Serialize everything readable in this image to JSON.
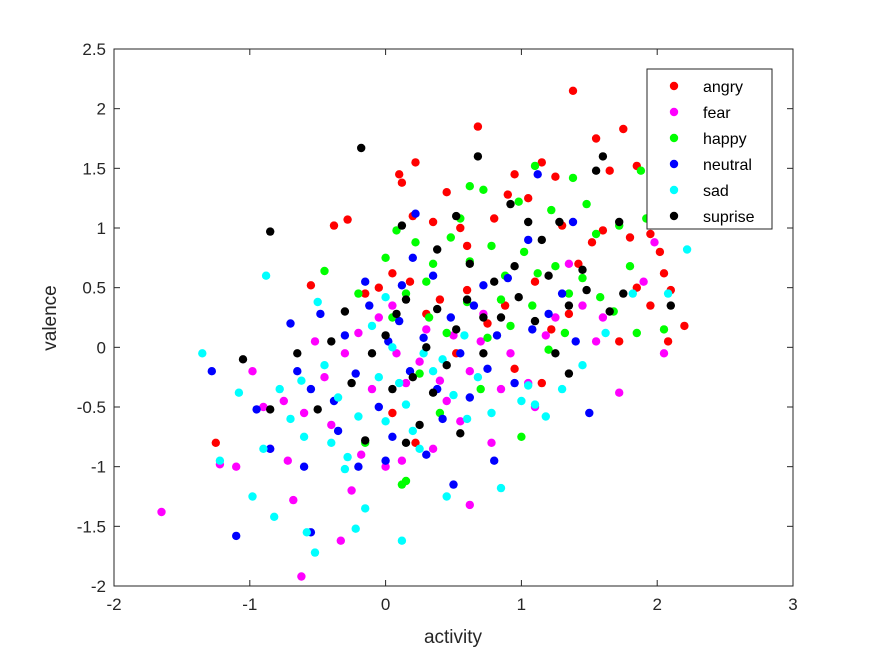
{
  "chart_data": {
    "type": "scatter",
    "title": "",
    "xlabel": "activity",
    "ylabel": "valence",
    "xlim": [
      -2,
      3
    ],
    "ylim": [
      -2,
      2.5
    ],
    "xticks": [
      "-2",
      "-1",
      "0",
      "1",
      "2",
      "3"
    ],
    "yticks": [
      "-2",
      "-1.5",
      "-1",
      "-0.5",
      "0",
      "0.5",
      "1",
      "1.5",
      "2",
      "2.5"
    ],
    "grid": false,
    "legend": "top-right",
    "series": [
      {
        "name": "angry",
        "color": "#ff0000",
        "points": [
          [
            1.38,
            2.15
          ],
          [
            0.68,
            1.85
          ],
          [
            1.75,
            1.83
          ],
          [
            0.22,
            1.55
          ],
          [
            1.15,
            1.55
          ],
          [
            1.55,
            1.75
          ],
          [
            0.1,
            1.45
          ],
          [
            0.95,
            1.45
          ],
          [
            1.25,
            1.43
          ],
          [
            1.65,
            1.48
          ],
          [
            1.85,
            1.52
          ],
          [
            0.12,
            1.38
          ],
          [
            0.45,
            1.3
          ],
          [
            0.9,
            1.28
          ],
          [
            1.05,
            1.25
          ],
          [
            -0.28,
            1.07
          ],
          [
            -0.38,
            1.02
          ],
          [
            0.2,
            1.1
          ],
          [
            0.35,
            1.05
          ],
          [
            0.55,
            1.0
          ],
          [
            0.8,
            1.08
          ],
          [
            1.3,
            1.02
          ],
          [
            1.6,
            0.98
          ],
          [
            1.95,
            0.95
          ],
          [
            -0.05,
            0.5
          ],
          [
            0.05,
            0.62
          ],
          [
            0.18,
            0.55
          ],
          [
            0.4,
            0.4
          ],
          [
            0.6,
            0.48
          ],
          [
            0.88,
            0.35
          ],
          [
            1.1,
            0.55
          ],
          [
            1.42,
            0.7
          ],
          [
            1.52,
            0.88
          ],
          [
            2.02,
            0.8
          ],
          [
            2.05,
            0.62
          ],
          [
            2.1,
            0.48
          ],
          [
            1.85,
            0.5
          ],
          [
            1.95,
            0.35
          ],
          [
            2.2,
            0.18
          ],
          [
            2.08,
            0.05
          ],
          [
            1.72,
            0.05
          ],
          [
            1.22,
            0.15
          ],
          [
            0.75,
            0.2
          ],
          [
            0.3,
            0.28
          ],
          [
            -0.55,
            0.52
          ],
          [
            -0.15,
            0.45
          ],
          [
            0.95,
            -0.18
          ],
          [
            1.15,
            -0.3
          ],
          [
            0.52,
            -0.05
          ],
          [
            -1.25,
            -0.8
          ],
          [
            0.05,
            -0.55
          ],
          [
            0.22,
            -0.8
          ],
          [
            1.35,
            0.28
          ],
          [
            0.6,
            0.85
          ],
          [
            1.8,
            0.92
          ]
        ]
      },
      {
        "name": "fear",
        "color": "#ff00ff",
        "points": [
          [
            -1.65,
            -1.38
          ],
          [
            -0.62,
            -1.92
          ],
          [
            -0.33,
            -1.62
          ],
          [
            -1.22,
            -0.98
          ],
          [
            -1.1,
            -1.0
          ],
          [
            -0.85,
            -0.85
          ],
          [
            -0.68,
            -1.28
          ],
          [
            -0.98,
            -0.2
          ],
          [
            -0.75,
            -0.45
          ],
          [
            -0.6,
            -0.55
          ],
          [
            -0.45,
            -0.25
          ],
          [
            -0.3,
            -0.05
          ],
          [
            -0.2,
            0.12
          ],
          [
            -0.05,
            0.25
          ],
          [
            0.08,
            -0.05
          ],
          [
            0.15,
            -0.3
          ],
          [
            0.25,
            -0.12
          ],
          [
            0.3,
            0.15
          ],
          [
            0.45,
            -0.45
          ],
          [
            0.55,
            -0.62
          ],
          [
            0.62,
            -0.2
          ],
          [
            0.7,
            0.05
          ],
          [
            0.78,
            -0.8
          ],
          [
            0.85,
            -0.35
          ],
          [
            0.92,
            -0.05
          ],
          [
            1.05,
            -0.3
          ],
          [
            1.18,
            0.1
          ],
          [
            1.25,
            0.25
          ],
          [
            1.45,
            0.35
          ],
          [
            1.55,
            0.05
          ],
          [
            1.72,
            -0.38
          ],
          [
            1.9,
            0.55
          ],
          [
            1.98,
            0.88
          ],
          [
            2.05,
            -0.05
          ],
          [
            -0.52,
            0.05
          ],
          [
            -0.4,
            -0.65
          ],
          [
            -0.18,
            -0.9
          ],
          [
            0.12,
            -0.95
          ],
          [
            0.35,
            -0.85
          ],
          [
            0.62,
            -1.32
          ],
          [
            0.05,
            0.35
          ],
          [
            -0.1,
            -0.35
          ],
          [
            0.5,
            0.1
          ],
          [
            1.1,
            -0.5
          ],
          [
            0.0,
            -1.0
          ],
          [
            -0.25,
            -1.2
          ],
          [
            -0.72,
            -0.95
          ],
          [
            -0.9,
            -0.5
          ],
          [
            0.4,
            -0.28
          ],
          [
            0.72,
            0.28
          ],
          [
            1.35,
            0.7
          ],
          [
            1.6,
            0.25
          ]
        ]
      },
      {
        "name": "happy",
        "color": "#00ff00",
        "points": [
          [
            1.1,
            1.52
          ],
          [
            1.38,
            1.42
          ],
          [
            1.88,
            1.48
          ],
          [
            0.62,
            1.35
          ],
          [
            0.72,
            1.32
          ],
          [
            0.98,
            1.22
          ],
          [
            1.22,
            1.15
          ],
          [
            1.48,
            1.2
          ],
          [
            1.72,
            1.02
          ],
          [
            1.92,
            1.08
          ],
          [
            0.0,
            0.75
          ],
          [
            0.08,
            0.98
          ],
          [
            0.22,
            0.88
          ],
          [
            0.35,
            0.7
          ],
          [
            0.48,
            0.92
          ],
          [
            0.55,
            1.08
          ],
          [
            0.62,
            0.72
          ],
          [
            0.78,
            0.85
          ],
          [
            0.88,
            0.6
          ],
          [
            1.02,
            0.8
          ],
          [
            1.12,
            0.62
          ],
          [
            1.25,
            0.68
          ],
          [
            1.35,
            0.45
          ],
          [
            1.45,
            0.58
          ],
          [
            1.58,
            0.42
          ],
          [
            1.68,
            0.3
          ],
          [
            1.8,
            0.68
          ],
          [
            1.85,
            0.12
          ],
          [
            2.05,
            0.15
          ],
          [
            -0.45,
            0.64
          ],
          [
            -0.2,
            0.45
          ],
          [
            0.05,
            0.25
          ],
          [
            0.15,
            0.45
          ],
          [
            0.32,
            0.25
          ],
          [
            0.45,
            0.12
          ],
          [
            0.6,
            0.38
          ],
          [
            0.75,
            0.08
          ],
          [
            0.92,
            0.18
          ],
          [
            1.08,
            0.35
          ],
          [
            1.2,
            -0.02
          ],
          [
            1.32,
            0.12
          ],
          [
            1.0,
            -0.75
          ],
          [
            0.7,
            -0.35
          ],
          [
            0.25,
            -0.22
          ],
          [
            0.12,
            -1.15
          ],
          [
            0.15,
            -1.12
          ],
          [
            -0.15,
            -0.8
          ],
          [
            0.4,
            -0.55
          ],
          [
            1.55,
            0.95
          ],
          [
            0.3,
            0.55
          ],
          [
            0.85,
            0.4
          ]
        ]
      },
      {
        "name": "neutral",
        "color": "#0000ff",
        "points": [
          [
            1.12,
            1.45
          ],
          [
            0.22,
            1.12
          ],
          [
            1.38,
            1.05
          ],
          [
            0.72,
            0.52
          ],
          [
            1.05,
            0.9
          ],
          [
            0.9,
            0.58
          ],
          [
            1.2,
            0.28
          ],
          [
            1.4,
            0.05
          ],
          [
            1.5,
            -0.55
          ],
          [
            -1.1,
            -1.58
          ],
          [
            -1.28,
            -0.2
          ],
          [
            -0.95,
            -0.52
          ],
          [
            -0.85,
            -0.85
          ],
          [
            -0.7,
            0.2
          ],
          [
            -0.65,
            -0.2
          ],
          [
            -0.55,
            -0.35
          ],
          [
            -0.48,
            0.28
          ],
          [
            -0.38,
            -0.45
          ],
          [
            -0.3,
            0.1
          ],
          [
            -0.22,
            -0.22
          ],
          [
            -0.12,
            0.35
          ],
          [
            -0.05,
            -0.5
          ],
          [
            0.02,
            0.05
          ],
          [
            0.1,
            0.22
          ],
          [
            0.18,
            -0.2
          ],
          [
            0.28,
            0.08
          ],
          [
            0.38,
            -0.35
          ],
          [
            0.48,
            0.25
          ],
          [
            0.55,
            -0.05
          ],
          [
            0.65,
            0.35
          ],
          [
            0.75,
            -0.18
          ],
          [
            0.82,
            0.1
          ],
          [
            0.95,
            -0.3
          ],
          [
            1.08,
            0.15
          ],
          [
            -0.55,
            -1.55
          ],
          [
            -0.2,
            -1.0
          ],
          [
            0.05,
            -0.75
          ],
          [
            0.3,
            -0.9
          ],
          [
            0.5,
            -1.15
          ],
          [
            0.8,
            -0.95
          ],
          [
            -0.35,
            -0.7
          ],
          [
            0.0,
            -0.95
          ],
          [
            0.42,
            -0.6
          ],
          [
            0.62,
            -0.42
          ],
          [
            -0.15,
            0.55
          ],
          [
            0.35,
            0.6
          ],
          [
            0.12,
            0.52
          ],
          [
            -0.6,
            -1.0
          ],
          [
            1.3,
            0.45
          ],
          [
            0.2,
            0.75
          ]
        ]
      },
      {
        "name": "sad",
        "color": "#00ffff",
        "points": [
          [
            -1.35,
            -0.05
          ],
          [
            -1.22,
            -0.95
          ],
          [
            -1.08,
            -0.38
          ],
          [
            -0.98,
            -1.25
          ],
          [
            -0.9,
            -0.85
          ],
          [
            -0.88,
            0.6
          ],
          [
            -0.78,
            -0.35
          ],
          [
            -0.7,
            -0.6
          ],
          [
            -0.6,
            -0.75
          ],
          [
            -0.58,
            -1.55
          ],
          [
            -0.52,
            -1.72
          ],
          [
            -0.5,
            0.38
          ],
          [
            -0.45,
            -0.15
          ],
          [
            -0.4,
            -0.8
          ],
          [
            -0.35,
            -0.42
          ],
          [
            -0.28,
            -0.92
          ],
          [
            -0.2,
            -0.58
          ],
          [
            -0.15,
            -1.35
          ],
          [
            -0.1,
            0.18
          ],
          [
            -0.05,
            -0.25
          ],
          [
            0.0,
            -0.62
          ],
          [
            0.05,
            0.0
          ],
          [
            0.1,
            -0.3
          ],
          [
            0.15,
            -0.48
          ],
          [
            0.2,
            -0.7
          ],
          [
            0.28,
            -0.05
          ],
          [
            0.35,
            -0.2
          ],
          [
            0.42,
            -0.1
          ],
          [
            0.5,
            -0.4
          ],
          [
            0.58,
            0.1
          ],
          [
            0.68,
            -0.25
          ],
          [
            0.78,
            -0.55
          ],
          [
            0.85,
            -1.18
          ],
          [
            1.0,
            -0.45
          ],
          [
            1.05,
            -0.32
          ],
          [
            1.1,
            -0.48
          ],
          [
            1.18,
            -0.58
          ],
          [
            1.3,
            -0.35
          ],
          [
            1.45,
            -0.15
          ],
          [
            1.62,
            0.12
          ],
          [
            1.82,
            0.45
          ],
          [
            2.08,
            0.45
          ],
          [
            2.22,
            0.82
          ],
          [
            -0.22,
            -1.52
          ],
          [
            0.12,
            -1.62
          ],
          [
            0.45,
            -1.25
          ],
          [
            -0.82,
            -1.42
          ],
          [
            -0.3,
            -1.02
          ],
          [
            0.25,
            -0.85
          ],
          [
            -0.62,
            -0.28
          ],
          [
            0.0,
            0.42
          ],
          [
            0.6,
            -0.6
          ]
        ]
      },
      {
        "name": "suprise",
        "color": "#000000",
        "points": [
          [
            -0.18,
            1.67
          ],
          [
            0.68,
            1.6
          ],
          [
            1.6,
            1.6
          ],
          [
            1.55,
            1.48
          ],
          [
            -0.85,
            0.97
          ],
          [
            0.12,
            1.02
          ],
          [
            0.52,
            1.1
          ],
          [
            0.92,
            1.2
          ],
          [
            1.05,
            1.05
          ],
          [
            1.15,
            0.9
          ],
          [
            1.28,
            1.05
          ],
          [
            1.72,
            1.05
          ],
          [
            0.38,
            0.82
          ],
          [
            0.62,
            0.7
          ],
          [
            0.8,
            0.55
          ],
          [
            0.95,
            0.68
          ],
          [
            1.2,
            0.6
          ],
          [
            1.35,
            0.35
          ],
          [
            1.48,
            0.48
          ],
          [
            1.65,
            0.3
          ],
          [
            1.75,
            0.45
          ],
          [
            2.1,
            0.35
          ],
          [
            -1.05,
            -0.1
          ],
          [
            -0.65,
            -0.05
          ],
          [
            -0.5,
            -0.52
          ],
          [
            -0.4,
            0.05
          ],
          [
            -0.25,
            -0.3
          ],
          [
            -0.1,
            -0.05
          ],
          [
            0.0,
            0.1
          ],
          [
            0.08,
            0.28
          ],
          [
            0.15,
            0.4
          ],
          [
            0.2,
            -0.25
          ],
          [
            0.3,
            0.0
          ],
          [
            0.38,
            0.32
          ],
          [
            0.45,
            -0.15
          ],
          [
            0.52,
            0.15
          ],
          [
            0.6,
            0.4
          ],
          [
            0.72,
            -0.05
          ],
          [
            0.85,
            0.25
          ],
          [
            0.98,
            0.42
          ],
          [
            1.1,
            0.22
          ],
          [
            1.25,
            -0.05
          ],
          [
            1.35,
            -0.22
          ],
          [
            -0.85,
            -0.52
          ],
          [
            -0.15,
            -0.78
          ],
          [
            0.05,
            -0.35
          ],
          [
            0.25,
            -0.65
          ],
          [
            0.35,
            -0.38
          ],
          [
            0.55,
            -0.72
          ],
          [
            0.72,
            0.25
          ],
          [
            -0.3,
            0.3
          ],
          [
            1.45,
            0.65
          ],
          [
            0.15,
            -0.8
          ]
        ]
      }
    ]
  }
}
